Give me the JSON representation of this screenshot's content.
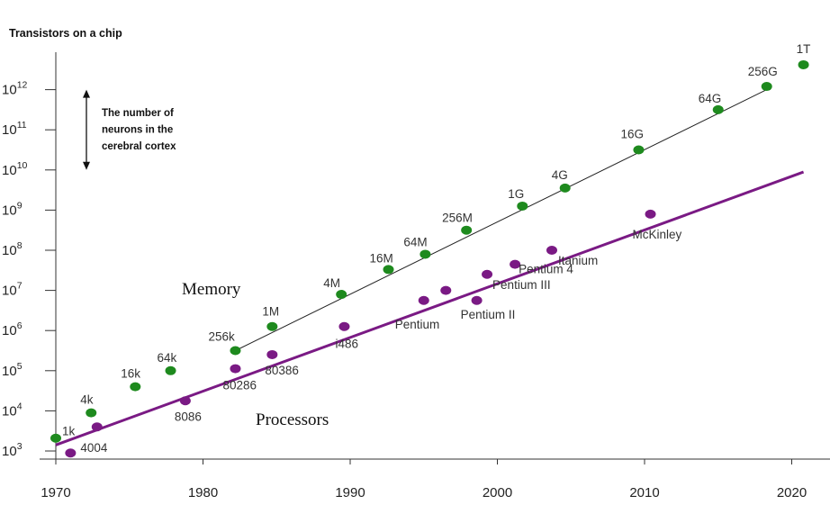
{
  "chart_data": {
    "type": "scatter",
    "title": "Transistors on a chip",
    "y_scale": "log",
    "x_ticks": [
      1970,
      1980,
      1990,
      2000,
      2010,
      2020
    ],
    "y_ticks": [
      "10^3",
      "10^4",
      "10^5",
      "10^6",
      "10^7",
      "10^8",
      "10^9",
      "10^10",
      "10^11",
      "10^12"
    ],
    "xlim": [
      1970,
      2023
    ],
    "ylim_exp": [
      3,
      13
    ],
    "annotation": {
      "lines": [
        "The number of",
        "neurons in the",
        "cerebral cortex"
      ],
      "range_exp": [
        10,
        12
      ]
    },
    "series": [
      {
        "name": "Memory",
        "color": "#1e8a1e",
        "points": [
          {
            "label": "1k",
            "x": 1970,
            "y_exp": 3.32
          },
          {
            "label": "4k",
            "x": 1972.4,
            "y_exp": 3.95
          },
          {
            "label": "16k",
            "x": 1975.4,
            "y_exp": 4.6
          },
          {
            "label": "64k",
            "x": 1977.8,
            "y_exp": 5.0
          },
          {
            "label": "256k",
            "x": 1982.2,
            "y_exp": 5.5
          },
          {
            "label": "1M",
            "x": 1984.7,
            "y_exp": 6.1
          },
          {
            "label": "4M",
            "x": 1989.4,
            "y_exp": 6.9
          },
          {
            "label": "16M",
            "x": 1992.6,
            "y_exp": 7.52
          },
          {
            "label": "64M",
            "x": 1995.1,
            "y_exp": 7.9
          },
          {
            "label": "256M",
            "x": 1997.9,
            "y_exp": 8.5
          },
          {
            "label": "1G",
            "x": 2001.7,
            "y_exp": 9.1
          },
          {
            "label": "4G",
            "x": 2004.6,
            "y_exp": 9.55
          },
          {
            "label": "16G",
            "x": 2009.6,
            "y_exp": 10.5
          },
          {
            "label": "64G",
            "x": 2015,
            "y_exp": 11.5
          },
          {
            "label": "256G",
            "x": 2018.3,
            "y_exp": 12.08
          },
          {
            "label": "1T",
            "x": 2020.8,
            "y_exp": 12.62
          }
        ],
        "trend": [
          [
            1982.2,
            5.5
          ],
          [
            2018.3,
            12.0
          ]
        ]
      },
      {
        "name": "Processors",
        "color": "#7a1a84",
        "points": [
          {
            "label": "4004",
            "x": 1971,
            "y_exp": 2.95
          },
          {
            "label": "",
            "x": 1972.8,
            "y_exp": 3.6
          },
          {
            "label": "8086",
            "x": 1978.8,
            "y_exp": 4.25
          },
          {
            "label": "80286",
            "x": 1982.2,
            "y_exp": 5.05
          },
          {
            "label": "80386",
            "x": 1984.7,
            "y_exp": 5.4
          },
          {
            "label": "i486",
            "x": 1989.6,
            "y_exp": 6.1
          },
          {
            "label": "Pentium",
            "x": 1995,
            "y_exp": 6.75
          },
          {
            "label": "",
            "x": 1996.5,
            "y_exp": 7.0
          },
          {
            "label": "Pentium II",
            "x": 1998.6,
            "y_exp": 6.75
          },
          {
            "label": "Pentium III",
            "x": 1999.3,
            "y_exp": 7.4
          },
          {
            "label": "Pentium 4",
            "x": 2001.2,
            "y_exp": 7.65
          },
          {
            "label": "Itanium",
            "x": 2003.7,
            "y_exp": 8.0
          },
          {
            "label": "McKinley",
            "x": 2010.4,
            "y_exp": 8.9
          }
        ],
        "trend": [
          [
            1970,
            3.15
          ],
          [
            2020.8,
            9.95
          ]
        ]
      }
    ]
  }
}
